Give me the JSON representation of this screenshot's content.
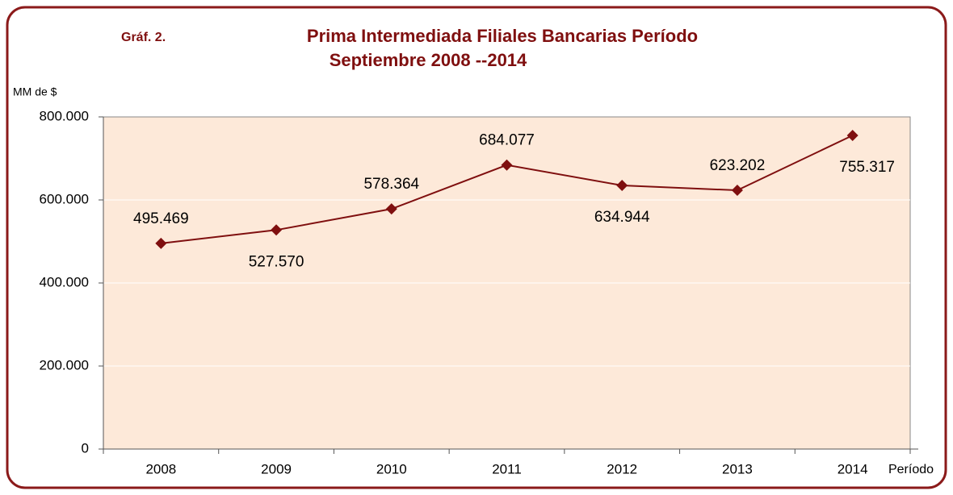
{
  "chart_data": {
    "type": "line",
    "label": "Gráf. 2.",
    "title": "Prima Intermediada Filiales  Bancarias Período",
    "subtitle": "Septiembre 2008 --2014",
    "y_label": "MM de $",
    "x_label": "Período",
    "categories": [
      "2008",
      "2009",
      "2010",
      "2011",
      "2012",
      "2013",
      "2014"
    ],
    "series": [
      {
        "name": "Prima Intermediada",
        "color": "#7f0f0f",
        "values": [
          495469,
          527570,
          578364,
          684077,
          634944,
          623202,
          755317
        ],
        "value_labels": [
          "495.469",
          "527.570",
          "578.364",
          "684.077",
          "634.944",
          "623.202",
          "755.317"
        ]
      }
    ],
    "ylim": [
      0,
      800000
    ],
    "yticks": [
      0,
      {
        "value": 200000,
        "label": "200.000"
      },
      {
        "value": 400000,
        "label": "400.000"
      },
      {
        "value": 600000,
        "label": "600.000"
      },
      {
        "value": 800000,
        "label": "800.000"
      }
    ],
    "grid": true,
    "plot_background": "#fde9d9"
  }
}
